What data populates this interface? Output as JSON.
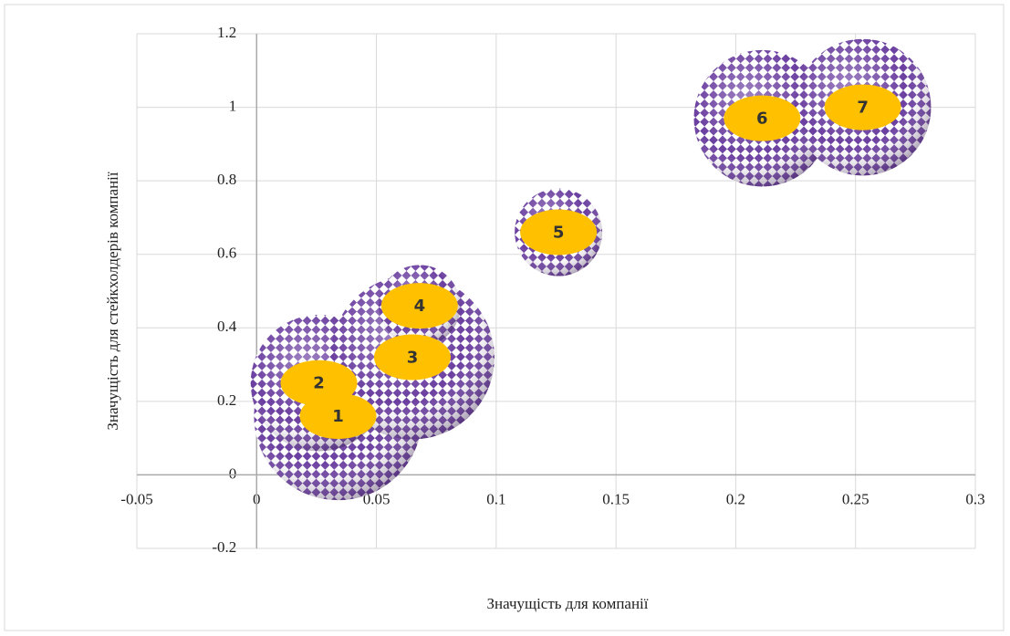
{
  "chart_data": {
    "type": "bubble",
    "x_label": "Значущість для компанії",
    "y_label": "Значущість для стейкхолдерів компанії",
    "x": [
      0.034,
      0.026,
      0.065,
      0.068,
      0.126,
      0.211,
      0.253
    ],
    "values": [
      0.16,
      0.25,
      0.32,
      0.46,
      0.66,
      0.97,
      1.0
    ],
    "sizes": [
      0.85,
      0.56,
      0.81,
      0.2,
      0.23,
      0.56,
      0.56
    ],
    "labels": [
      "1",
      "2",
      "3",
      "4",
      "5",
      "6",
      "7"
    ],
    "color": "#6b3fa0",
    "label_color": "#ffc000",
    "xlim": [
      -0.05,
      0.3
    ],
    "xticks": [
      -0.05,
      0,
      0.05,
      0.1,
      0.15,
      0.2,
      0.25,
      0.3
    ],
    "ylim": [
      -0.2,
      1.2
    ],
    "yticks": [
      -0.2,
      0,
      0.2,
      0.4,
      0.6,
      0.8,
      1,
      1.2
    ],
    "grid": true
  }
}
